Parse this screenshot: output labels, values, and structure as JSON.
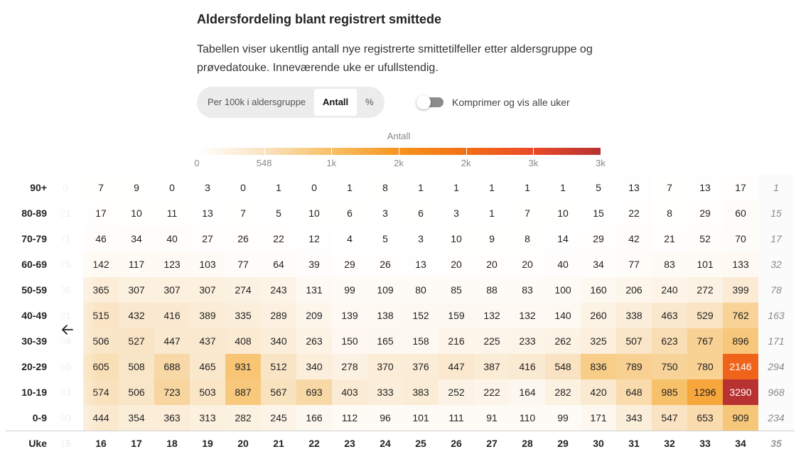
{
  "title": "Aldersfordeling blant registrert smittede",
  "description": "Tabellen viser ukentlig antall nye registrerte smittetilfeller etter aldersgruppe og prøvedatouke. Inneværende uke er ufullstendig.",
  "segmented": {
    "options": [
      "Per 100k i aldersgruppe",
      "Antall",
      "%"
    ],
    "selected": "Antall"
  },
  "toggle": {
    "label": "Komprimer og vis alle uker",
    "on": false
  },
  "legend": {
    "label": "Antall",
    "ticks": [
      "0",
      "548",
      "1k",
      "2k",
      "2k",
      "3k",
      "3k"
    ],
    "colors": [
      "#ffffff",
      "#f9e3c2",
      "#f7c066",
      "#f7941d",
      "#f26f14",
      "#e94a28",
      "#b73232"
    ]
  },
  "icons": {
    "back": "arrow-left-icon"
  },
  "chart_data": {
    "type": "heatmap",
    "xlabel": "Uke",
    "ylabel": "",
    "x": [
      "15",
      "16",
      "17",
      "18",
      "19",
      "20",
      "21",
      "22",
      "23",
      "24",
      "25",
      "26",
      "27",
      "28",
      "29",
      "30",
      "31",
      "32",
      "33",
      "34",
      "35"
    ],
    "partial_week": "35",
    "y": [
      "90+",
      "80-89",
      "70-79",
      "60-69",
      "50-59",
      "40-49",
      "30-39",
      "20-29",
      "10-19",
      "0-9"
    ],
    "visible_values_first_week": [
      "0",
      "21",
      "71",
      "75",
      "36",
      "91",
      "04",
      "65",
      "83",
      "90"
    ],
    "values": [
      [
        null,
        7,
        9,
        0,
        3,
        0,
        1,
        0,
        1,
        8,
        1,
        1,
        1,
        1,
        1,
        5,
        13,
        7,
        13,
        17,
        1
      ],
      [
        null,
        17,
        10,
        11,
        13,
        7,
        5,
        10,
        6,
        3,
        6,
        3,
        1,
        7,
        10,
        15,
        22,
        8,
        29,
        60,
        15
      ],
      [
        null,
        46,
        34,
        40,
        27,
        26,
        22,
        12,
        4,
        5,
        3,
        10,
        9,
        8,
        14,
        29,
        42,
        21,
        52,
        70,
        17
      ],
      [
        null,
        142,
        117,
        123,
        103,
        77,
        64,
        39,
        29,
        26,
        13,
        20,
        20,
        20,
        40,
        34,
        77,
        83,
        101,
        133,
        32
      ],
      [
        null,
        365,
        307,
        307,
        307,
        274,
        243,
        131,
        99,
        109,
        80,
        85,
        88,
        83,
        100,
        160,
        206,
        240,
        272,
        399,
        78
      ],
      [
        null,
        515,
        432,
        416,
        389,
        335,
        289,
        209,
        139,
        138,
        152,
        159,
        132,
        132,
        140,
        260,
        338,
        463,
        529,
        762,
        163
      ],
      [
        null,
        506,
        527,
        447,
        437,
        408,
        340,
        263,
        150,
        165,
        158,
        216,
        225,
        233,
        262,
        325,
        507,
        623,
        767,
        896,
        171
      ],
      [
        null,
        605,
        508,
        688,
        465,
        931,
        512,
        340,
        278,
        370,
        376,
        447,
        387,
        416,
        548,
        836,
        789,
        750,
        780,
        2146,
        294
      ],
      [
        null,
        574,
        506,
        723,
        503,
        887,
        567,
        693,
        403,
        333,
        383,
        252,
        222,
        164,
        282,
        420,
        648,
        985,
        1296,
        3290,
        968
      ],
      [
        null,
        444,
        354,
        363,
        313,
        282,
        245,
        166,
        112,
        96,
        101,
        111,
        91,
        110,
        99,
        171,
        343,
        547,
        653,
        909,
        234
      ]
    ],
    "legend": "top-center",
    "grid": false
  }
}
